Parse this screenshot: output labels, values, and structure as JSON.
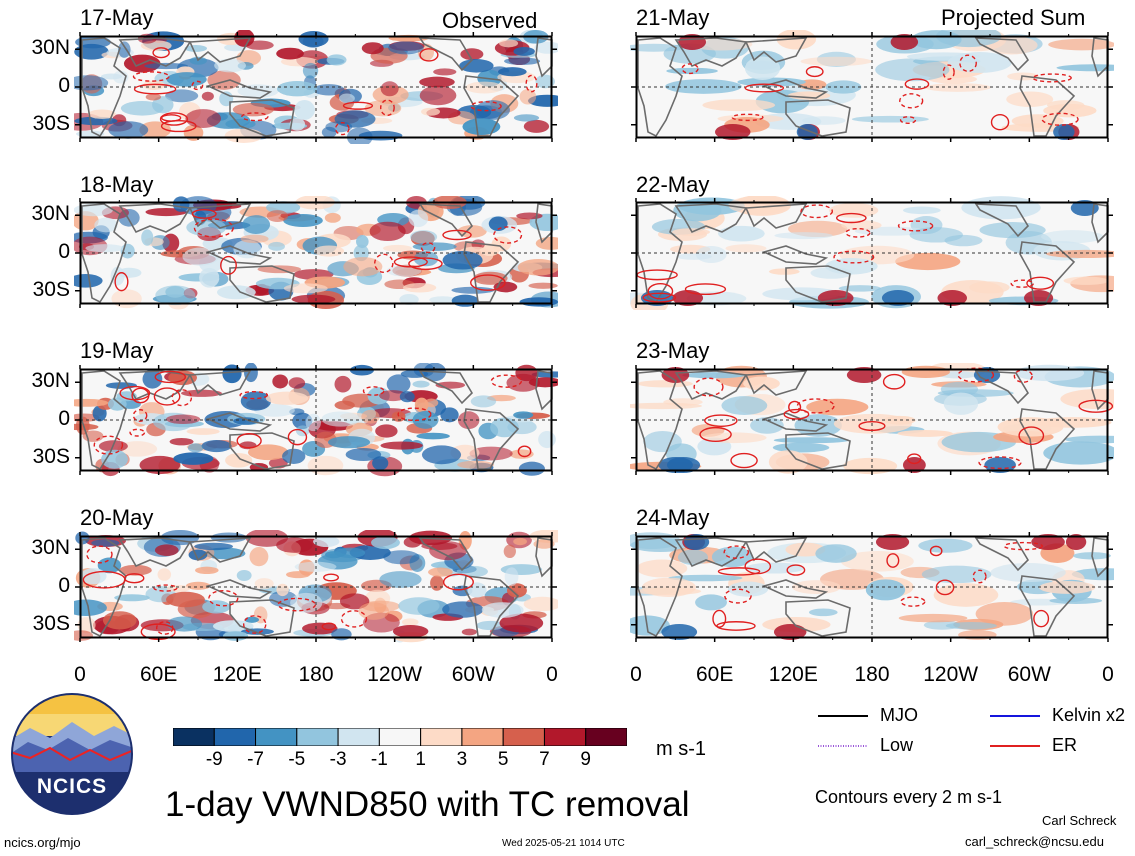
{
  "columns": {
    "left": {
      "title": "Observed"
    },
    "right": {
      "title": "Projected Sum"
    }
  },
  "panels": [
    {
      "date": "17-May",
      "kind": "observed"
    },
    {
      "date": "18-May",
      "kind": "observed"
    },
    {
      "date": "19-May",
      "kind": "observed"
    },
    {
      "date": "20-May",
      "kind": "observed"
    },
    {
      "date": "21-May",
      "kind": "projected"
    },
    {
      "date": "22-May",
      "kind": "projected"
    },
    {
      "date": "23-May",
      "kind": "projected"
    },
    {
      "date": "24-May",
      "kind": "projected"
    }
  ],
  "chart_data": {
    "type": "heatmap",
    "title": "1-day VWND850 with TC removal",
    "lat_ticks": [
      "30N",
      "0",
      "30S"
    ],
    "lon_ticks": [
      "0",
      "60E",
      "120E",
      "180",
      "120W",
      "60W",
      "0"
    ],
    "lat_range": [
      -40,
      40
    ],
    "lon_range": [
      0,
      360
    ],
    "colorbar": {
      "unit": "m s-1",
      "ticks": [
        "-9",
        "-7",
        "-5",
        "-3",
        "-1",
        "1",
        "3",
        "5",
        "7",
        "9"
      ],
      "colors": [
        "#0a3161",
        "#2166ac",
        "#4393c3",
        "#92c5de",
        "#d1e5f0",
        "#f7f7f7",
        "#fddbc7",
        "#f4a582",
        "#d6604d",
        "#b2182b",
        "#67001f"
      ]
    },
    "contour_legend": [
      {
        "name": "MJO",
        "color": "#000000",
        "style": "solid"
      },
      {
        "name": "Kelvin x2",
        "color": "#1515dd",
        "style": "solid"
      },
      {
        "name": "Low",
        "color": "#9a55d8",
        "style": "dotted"
      },
      {
        "name": "ER",
        "color": "#e02020",
        "style": "solid"
      }
    ],
    "contour_note": "Contours every 2 m s-1"
  },
  "branding": {
    "logo_text": "NCICS",
    "site": "ncics.org/mjo",
    "timestamp": "Wed 2025-05-21 1014 UTC",
    "author": "Carl Schreck",
    "email": "carl_schreck@ncsu.edu"
  }
}
